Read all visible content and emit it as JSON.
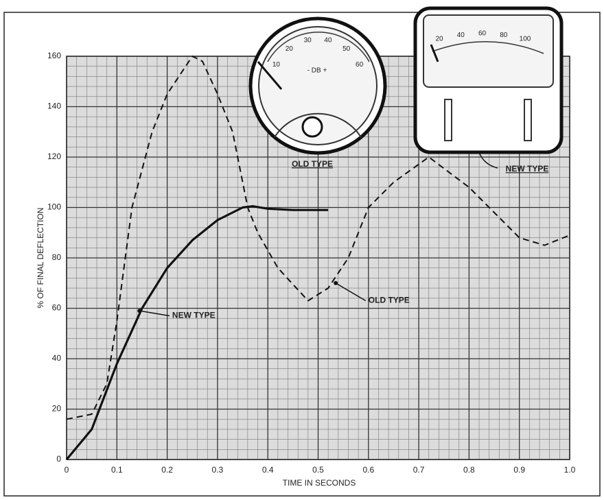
{
  "chart_data": {
    "type": "line",
    "x_label": "TIME IN SECONDS",
    "y_label": "% OF FINAL DEFLECTION",
    "xlim": [
      0,
      1
    ],
    "ylim": [
      0,
      160
    ],
    "xticks": [
      0,
      0.1,
      0.2,
      0.3,
      0.4,
      0.5,
      0.6,
      0.7,
      0.8,
      0.9,
      {
        "value": 1,
        "label": "1.0"
      }
    ],
    "yticks": [
      0,
      20,
      40,
      60,
      80,
      100,
      120,
      140,
      160
    ],
    "grid": true,
    "minor_grid_divisions": 5,
    "series": [
      {
        "name": "NEW TYPE",
        "color": "#111111",
        "style": "solid",
        "x": [
          0,
          0.05,
          0.1,
          0.15,
          0.2,
          0.25,
          0.3,
          0.35,
          0.37,
          0.4,
          0.45,
          0.52
        ],
        "values": [
          0,
          12,
          38,
          60,
          76,
          87,
          95,
          100,
          100.5,
          99.5,
          99,
          99
        ],
        "label_at": [
          0.21,
          57
        ],
        "arrow_to": [
          0.145,
          59
        ]
      },
      {
        "name": "OLD TYPE",
        "color": "#111111",
        "style": "dashed",
        "x": [
          0,
          0.05,
          0.08,
          0.1,
          0.13,
          0.17,
          0.2,
          0.25,
          0.27,
          0.3,
          0.33,
          0.36,
          0.38,
          0.42,
          0.48,
          0.52,
          0.56,
          0.6,
          0.65,
          0.72,
          0.8,
          0.9,
          0.95,
          1
        ],
        "values": [
          16,
          18,
          30,
          55,
          100,
          130,
          145,
          160,
          158,
          145,
          130,
          100,
          90,
          76,
          63,
          68,
          80,
          100,
          110,
          120,
          108,
          88,
          85,
          89
        ],
        "label_at": [
          0.6,
          63
        ],
        "arrow_to": [
          0.535,
          70
        ]
      }
    ]
  },
  "old_meter": {
    "label": "OLD TYPE",
    "scale": [
      "10",
      "20",
      "30",
      "40",
      "50",
      "60"
    ],
    "db": "- DB +"
  },
  "new_meter": {
    "label": "NEW TYPE",
    "scale": [
      "20",
      "40",
      "60",
      "80",
      "100"
    ]
  }
}
